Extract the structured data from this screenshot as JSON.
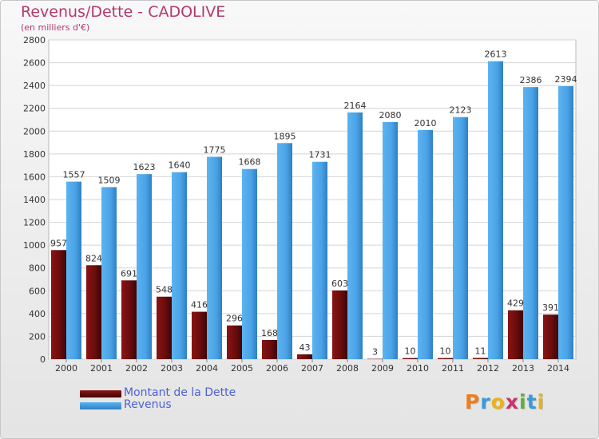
{
  "chart_data": {
    "type": "bar",
    "title": "Revenus/Dette - CADOLIVE",
    "subtitle": "(en milliers d'€)",
    "categories": [
      "2000",
      "2001",
      "2002",
      "2003",
      "2004",
      "2005",
      "2006",
      "2007",
      "2008",
      "2009",
      "2010",
      "2011",
      "2012",
      "2013",
      "2014"
    ],
    "series": [
      {
        "name": "Montant de la Dette",
        "color": "#6b0a0a",
        "values": [
          957,
          824,
          691,
          548,
          416,
          296,
          168,
          43,
          603,
          3,
          10,
          10,
          11,
          429,
          391
        ]
      },
      {
        "name": "Revenus",
        "color": "#4aa3e6",
        "values": [
          1557,
          1509,
          1623,
          1640,
          1775,
          1668,
          1895,
          1731,
          2164,
          2080,
          2010,
          2123,
          2613,
          2386,
          2394
        ]
      }
    ],
    "ylim": [
      0,
      2800
    ],
    "yticks": [
      0,
      200,
      400,
      600,
      800,
      1000,
      1200,
      1400,
      1600,
      1800,
      2000,
      2200,
      2400,
      2600,
      2800
    ],
    "xlabel": "",
    "ylabel": "",
    "grid": true,
    "legend": "bottom-left"
  },
  "logo": {
    "text": "Proxiti",
    "colors": [
      "#ee7d1f",
      "#3a9ad9",
      "#e8b21c",
      "#c9336b",
      "#5bb13a",
      "#3a9ad9",
      "#e8b21c"
    ]
  }
}
